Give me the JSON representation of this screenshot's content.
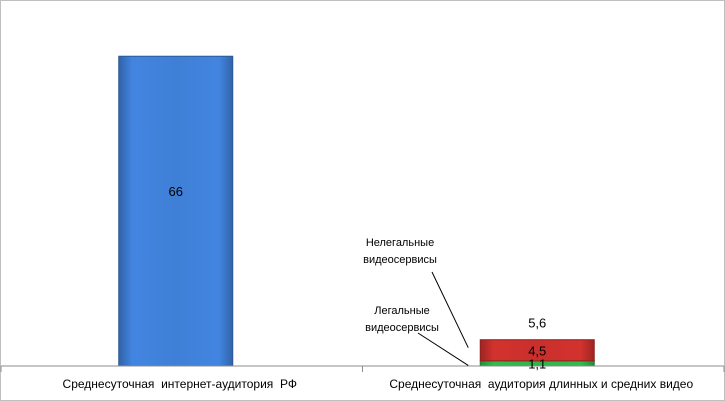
{
  "chart_data": {
    "type": "bar",
    "stacked": true,
    "categories": [
      "Среднесуточная  интернет-аудитория  РФ",
      "Среднесуточная  аудитория длинных и средних видео"
    ],
    "series": [
      {
        "name": "Легальные видеосервисы",
        "values": [
          null,
          1.1
        ],
        "color": "#2fb34a"
      },
      {
        "name": "Нелегальные видеосервисы",
        "values": [
          null,
          4.5
        ],
        "color": "#c9302c"
      },
      {
        "name": "",
        "values": [
          66,
          null
        ],
        "color": "#3f7fd6"
      }
    ],
    "data_labels": [
      {
        "category": 0,
        "text": "66"
      },
      {
        "category": 1,
        "series": 0,
        "text": "1,1"
      },
      {
        "category": 1,
        "series": 1,
        "text": "4,5"
      }
    ],
    "total_labels": [
      {
        "category": 1,
        "text": "5,6"
      }
    ],
    "annotations": [
      {
        "lines": [
          "Нелегальные",
          "видеосервисы"
        ],
        "target_series": 1
      },
      {
        "lines": [
          "Легальные",
          "видеосервисы"
        ],
        "target_series": 0
      }
    ],
    "ylim": [
      0,
      75
    ],
    "grid": false,
    "legend": "none",
    "title": "",
    "xlabel": "",
    "ylabel": ""
  }
}
